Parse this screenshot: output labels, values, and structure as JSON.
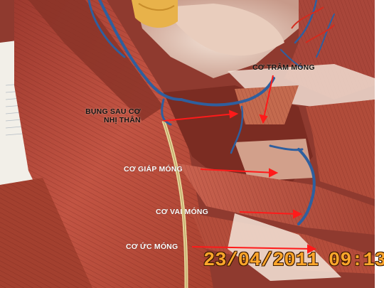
{
  "labels": {
    "tram_mong": "CƠ TRÂM MÓNG",
    "bung_sau_line1": "BỤNG SAU CƠ",
    "bung_sau_line2": "NHỊ THÂN",
    "giap_mong": "CƠ GIÁP MÓNG",
    "vai_mong": "CƠ VAI MÓNG",
    "uc_mong": "CƠ ỨC MÓNG"
  },
  "timestamp": {
    "date": "23/04/2011",
    "time": "09:13"
  },
  "colors": {
    "pointer": "#ff1a1a",
    "timestamp": "#ffa62b",
    "muscle": "#b8473a",
    "vein": "#2f5f9e",
    "nerve": "#e7d69a"
  }
}
